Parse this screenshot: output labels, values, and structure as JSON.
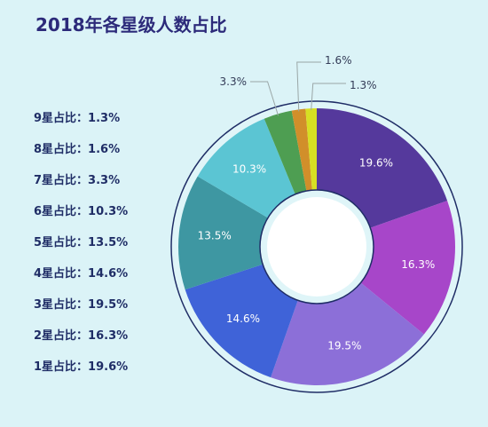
{
  "title": "2018年各星级人数占比",
  "legend_items": [
    "9星占比：1.3%",
    "8星占比：1.6%",
    "7星占比：3.3%",
    "6星占比：10.3%",
    "5星占比：13.5%",
    "4星占比：14.6%",
    "3星占比：19.5%",
    "2星占比：16.3%",
    "1星占比：19.6%"
  ],
  "chart_data": {
    "type": "pie",
    "donut": true,
    "title": "2018年各星级人数占比",
    "series": [
      {
        "category": "1星",
        "value": 19.6,
        "label": "19.6%",
        "color": "#55399c"
      },
      {
        "category": "2星",
        "value": 16.3,
        "label": "16.3%",
        "color": "#a746c9"
      },
      {
        "category": "3星",
        "value": 19.5,
        "label": "19.5%",
        "color": "#8c6fd8"
      },
      {
        "category": "4星",
        "value": 14.6,
        "label": "14.6%",
        "color": "#3f63d8"
      },
      {
        "category": "5星",
        "value": 13.5,
        "label": "13.5%",
        "color": "#3e97a2"
      },
      {
        "category": "6星",
        "value": 10.3,
        "label": "10.3%",
        "color": "#5bc5d3"
      },
      {
        "category": "7星",
        "value": 3.3,
        "label": "3.3%",
        "color": "#4e9e52"
      },
      {
        "category": "8星",
        "value": 1.6,
        "label": "1.6%",
        "color": "#d18f2a"
      },
      {
        "category": "9星",
        "value": 1.3,
        "label": "1.3%",
        "color": "#d7df23"
      }
    ],
    "legend": "left"
  }
}
